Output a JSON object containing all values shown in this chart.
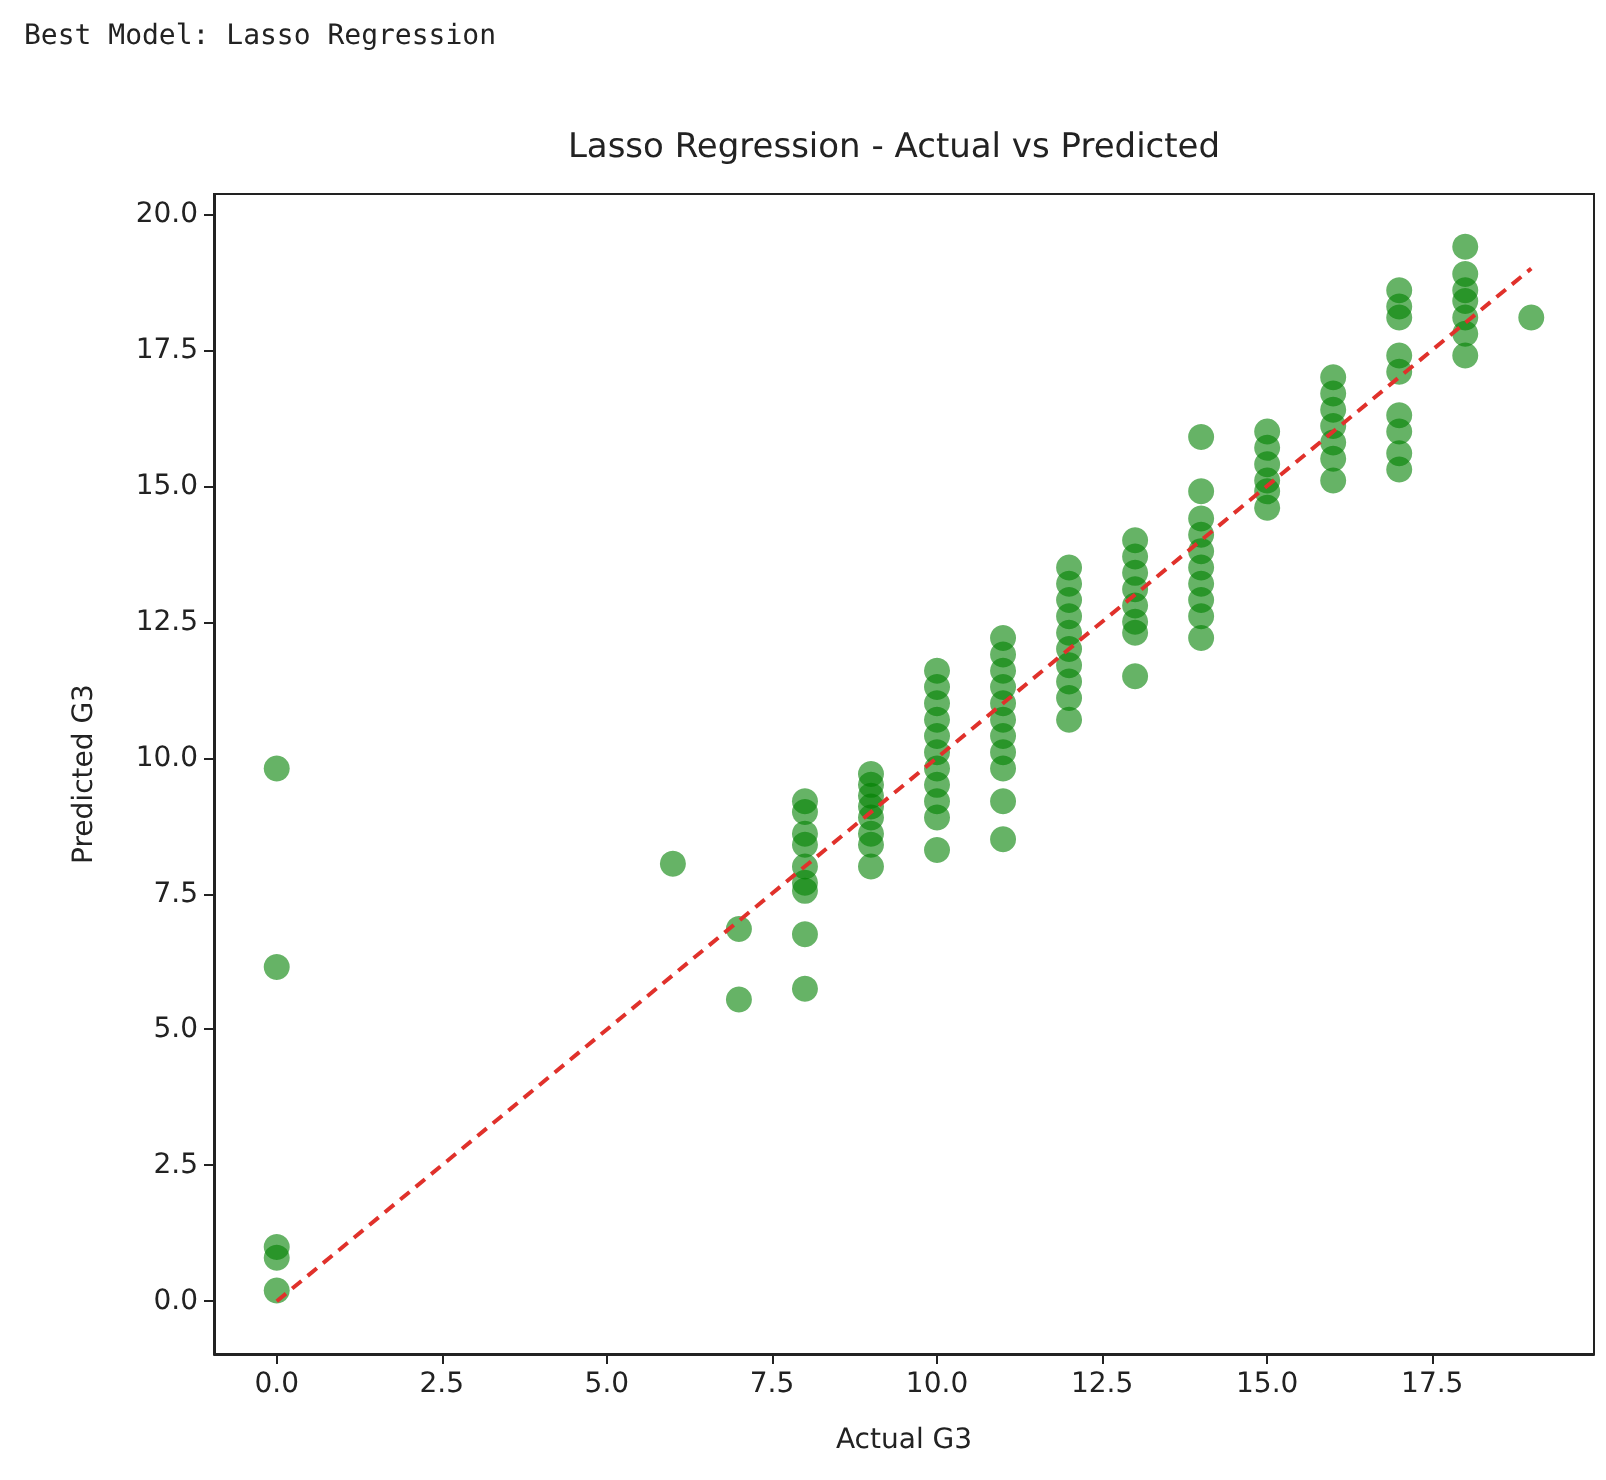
{
  "chart_data": {
    "type": "scatter",
    "title": "Lasso Regression - Actual vs Predicted",
    "xlabel": "Actual G3",
    "ylabel": "Predicted G3",
    "annotations": [
      "Best Model: Lasso Regression"
    ],
    "xlim": [
      -0.95,
      19.95
    ],
    "ylim": [
      -0.97,
      20.37
    ],
    "xticks": [
      {
        "value": 0,
        "label": "0.0"
      },
      {
        "value": 2.5,
        "label": "2.5"
      },
      {
        "value": 5,
        "label": "5.0"
      },
      {
        "value": 7.5,
        "label": "7.5"
      },
      {
        "value": 10,
        "label": "10.0"
      },
      {
        "value": 12.5,
        "label": "12.5"
      },
      {
        "value": 15,
        "label": "15.0"
      },
      {
        "value": 17.5,
        "label": "17.5"
      }
    ],
    "yticks": [
      {
        "value": 0,
        "label": "0.0"
      },
      {
        "value": 2.5,
        "label": "2.5"
      },
      {
        "value": 5,
        "label": "5.0"
      },
      {
        "value": 7.5,
        "label": "7.5"
      },
      {
        "value": 10,
        "label": "10.0"
      },
      {
        "value": 12.5,
        "label": "12.5"
      },
      {
        "value": 15,
        "label": "15.0"
      },
      {
        "value": 17.5,
        "label": "17.5"
      },
      {
        "value": 20,
        "label": "20.0"
      }
    ],
    "grid": false,
    "marker": "circle",
    "series": [
      {
        "color": "#008000",
        "x": [
          0,
          0,
          0,
          0,
          0,
          6,
          7,
          7,
          8,
          8,
          8,
          8,
          8,
          8,
          8,
          8,
          8,
          9,
          9,
          9,
          9,
          9,
          9,
          9,
          9,
          10,
          10,
          10,
          10,
          10,
          10,
          10,
          10,
          10,
          10,
          10,
          11,
          11,
          11,
          11,
          11,
          11,
          11,
          11,
          11,
          11,
          11,
          12,
          12,
          12,
          12,
          12,
          12,
          12,
          12,
          12,
          12,
          13,
          13,
          13,
          13,
          13,
          13,
          13,
          13,
          14,
          14,
          14,
          14,
          14,
          14,
          14,
          14,
          14,
          14,
          15,
          15,
          15,
          15,
          15,
          15,
          16,
          16,
          16,
          16,
          16,
          16,
          16,
          17,
          17,
          17,
          17,
          17,
          17,
          17,
          17,
          17,
          18,
          18,
          18,
          18,
          18,
          18,
          18,
          19
        ],
        "values": [
          9.8,
          6.15,
          1.0,
          0.8,
          0.2,
          8.05,
          6.85,
          5.55,
          9.2,
          9.0,
          8.6,
          8.4,
          8.0,
          7.7,
          7.55,
          6.75,
          5.75,
          9.7,
          9.5,
          9.3,
          9.1,
          8.9,
          8.6,
          8.4,
          8.0,
          11.6,
          11.3,
          11.0,
          10.7,
          10.4,
          10.1,
          9.8,
          9.5,
          9.2,
          8.9,
          8.3,
          12.2,
          11.9,
          11.6,
          11.3,
          11.0,
          10.7,
          10.4,
          10.1,
          9.8,
          9.2,
          8.5,
          13.5,
          13.2,
          12.9,
          12.6,
          12.3,
          12.0,
          11.7,
          11.4,
          11.1,
          10.7,
          14.0,
          13.7,
          13.4,
          13.1,
          12.8,
          12.5,
          12.3,
          11.5,
          15.9,
          14.9,
          14.4,
          14.1,
          13.8,
          13.5,
          13.2,
          12.9,
          12.6,
          12.2,
          16.0,
          15.7,
          15.4,
          15.1,
          14.9,
          14.6,
          17.0,
          16.7,
          16.4,
          16.1,
          15.8,
          15.5,
          15.1,
          18.6,
          18.3,
          18.1,
          17.4,
          17.1,
          16.3,
          16.0,
          15.6,
          15.3,
          19.4,
          18.9,
          18.6,
          18.4,
          18.1,
          17.8,
          17.4,
          18.1
        ]
      },
      {
        "type": "line",
        "color": "#e0312b",
        "marker": "none",
        "line_style": "dashed",
        "x": [
          0,
          19
        ],
        "values": [
          0,
          19
        ]
      }
    ]
  }
}
